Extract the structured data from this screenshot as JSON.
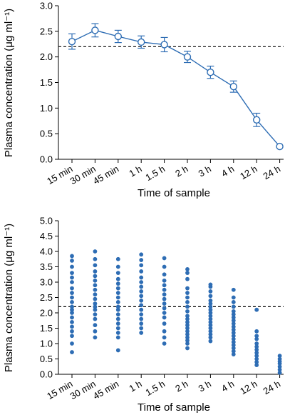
{
  "colors": {
    "series": "#2e6db4",
    "axis": "#000000",
    "reference": "#000000"
  },
  "chart_data": [
    {
      "type": "line",
      "categories": [
        "15 min",
        "30 min",
        "45 min",
        "1 h",
        "1.5 h",
        "2 h",
        "3 h",
        "4 h",
        "12 h",
        "24 h"
      ],
      "values": [
        2.3,
        2.52,
        2.4,
        2.29,
        2.24,
        2.0,
        1.7,
        1.42,
        0.77,
        0.25
      ],
      "error": [
        0.15,
        0.13,
        0.12,
        0.12,
        0.14,
        0.11,
        0.12,
        0.11,
        0.13,
        0.0
      ],
      "reference_line": 2.2,
      "xlabel": "Time of sample",
      "ylabel": "Plasma concentration (μg ml⁻¹)",
      "ylim": [
        0.0,
        3.0
      ],
      "yticks": [
        "0.0",
        "0.5",
        "1.0",
        "1.5",
        "2.0",
        "2.5",
        "3.0"
      ],
      "grid": false,
      "marker": "open-circle"
    },
    {
      "type": "scatter",
      "categories": [
        "15 min",
        "30 min",
        "45 min",
        "1 h",
        "1.5 h",
        "2 h",
        "3 h",
        "4 h",
        "12 h",
        "24 h"
      ],
      "points": [
        [
          3.85,
          3.7,
          3.5,
          3.3,
          3.15,
          3.0,
          2.8,
          2.65,
          2.5,
          2.35,
          2.2,
          2.1,
          2.0,
          1.85,
          1.7,
          1.55,
          1.4,
          1.25,
          1.0,
          0.72
        ],
        [
          4.0,
          3.75,
          3.55,
          3.35,
          3.2,
          3.05,
          2.9,
          2.75,
          2.6,
          2.45,
          2.3,
          2.2,
          2.1,
          1.95,
          1.8,
          1.6,
          1.4,
          1.2
        ],
        [
          3.75,
          3.5,
          3.3,
          3.1,
          2.95,
          2.8,
          2.65,
          2.5,
          2.35,
          2.2,
          2.1,
          1.95,
          1.8,
          1.65,
          1.5,
          1.35,
          1.2,
          0.78
        ],
        [
          3.9,
          3.72,
          3.55,
          3.35,
          3.15,
          3.0,
          2.85,
          2.7,
          2.55,
          2.4,
          2.25,
          2.1,
          1.95,
          1.8,
          1.65,
          1.5,
          1.35
        ],
        [
          3.78,
          3.5,
          3.25,
          3.05,
          2.9,
          2.75,
          2.6,
          2.45,
          2.3,
          2.15,
          2.0,
          1.85,
          1.65,
          1.4,
          1.2,
          1.0
        ],
        [
          3.42,
          3.3,
          3.1,
          2.8,
          2.65,
          2.5,
          2.35,
          2.2,
          2.05,
          1.9,
          1.8,
          1.7,
          1.6,
          1.5,
          1.4,
          1.3,
          1.2,
          1.1,
          1.0,
          0.85
        ],
        [
          2.92,
          2.85,
          2.7,
          2.55,
          2.4,
          2.3,
          2.2,
          2.1,
          2.0,
          1.9,
          1.8,
          1.7,
          1.6,
          1.5,
          1.4,
          1.3,
          1.2,
          1.08
        ],
        [
          2.75,
          2.5,
          2.35,
          2.2,
          2.05,
          1.95,
          1.85,
          1.75,
          1.65,
          1.55,
          1.45,
          1.35,
          1.25,
          1.15,
          1.05,
          0.95,
          0.85,
          0.75,
          0.65
        ],
        [
          2.1,
          1.4,
          1.25,
          1.15,
          1.0,
          0.9,
          0.8,
          0.7,
          0.6,
          0.5,
          0.4,
          0.3
        ],
        [
          0.6,
          0.5,
          0.42,
          0.35,
          0.25,
          0.15,
          0.05
        ]
      ],
      "reference_line": 2.2,
      "xlabel": "Time of sample",
      "ylabel": "Plasma concentration (μg ml⁻¹)",
      "ylim": [
        0.0,
        5.0
      ],
      "yticks": [
        "0.0",
        "0.5",
        "1.0",
        "1.5",
        "2.0",
        "2.5",
        "3.0",
        "3.5",
        "4.0",
        "4.5",
        "5.0"
      ],
      "grid": false,
      "marker": "filled-dot"
    }
  ]
}
